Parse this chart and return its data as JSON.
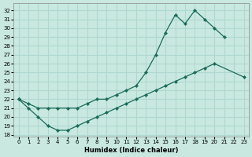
{
  "xlabel": "Humidex (Indice chaleur)",
  "background_color": "#c8e8e0",
  "grid_color": "#b0d8d0",
  "line_color": "#1a6b5a",
  "ylim": [
    17.8,
    32.8
  ],
  "xlim": [
    -0.5,
    23.5
  ],
  "yticks": [
    18,
    19,
    20,
    21,
    22,
    23,
    24,
    25,
    26,
    27,
    28,
    29,
    30,
    31,
    32
  ],
  "xticks": [
    0,
    1,
    2,
    3,
    4,
    5,
    6,
    7,
    8,
    9,
    10,
    11,
    12,
    13,
    14,
    15,
    16,
    17,
    18,
    19,
    20,
    21,
    22,
    23
  ],
  "curve_upper_x": [
    0,
    1,
    2,
    3,
    4,
    5,
    6,
    7,
    8,
    9,
    10,
    11,
    12,
    13,
    14,
    15,
    16,
    17,
    18,
    19,
    20,
    21,
    22,
    23
  ],
  "curve_upper_y": [
    22.0,
    21.5,
    21.0,
    21.0,
    21.0,
    21.0,
    21.0,
    21.5,
    22.0,
    22.0,
    22.5,
    23.0,
    23.5,
    25.0,
    27.0,
    29.5,
    31.5,
    30.5,
    32.0,
    31.0,
    30.0,
    29.0,
    null,
    null
  ],
  "curve_lower_x": [
    0,
    1,
    2,
    3,
    4,
    5,
    6,
    7,
    8,
    9,
    10,
    11,
    12,
    13,
    14,
    15,
    16,
    17,
    18,
    19,
    20,
    23
  ],
  "curve_lower_y": [
    22.0,
    21.0,
    20.0,
    19.0,
    18.5,
    18.5,
    19.0,
    19.5,
    20.0,
    20.5,
    21.0,
    21.5,
    22.0,
    22.5,
    23.0,
    23.5,
    24.0,
    24.5,
    25.0,
    25.5,
    26.0,
    24.5
  ]
}
